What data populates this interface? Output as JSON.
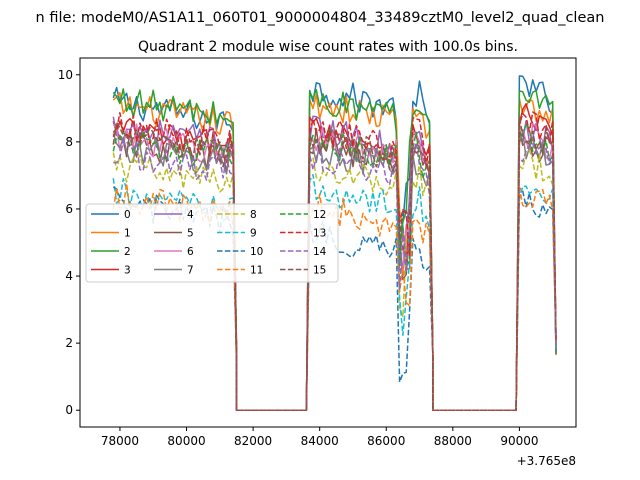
{
  "chart_data": {
    "type": "line",
    "suptitle": "n file: modeM0/AS1A11_060T01_9000004804_33489cztM0_level2_quad_clean",
    "title": "Quadrant 2 module wise count rates with 100.0s bins.",
    "xlabel": "",
    "ylabel": "",
    "x_offset_label": "+3.765e8",
    "xlim": [
      76800,
      91700
    ],
    "ylim": [
      -0.5,
      10.5
    ],
    "x_ticks": [
      78000,
      80000,
      82000,
      84000,
      86000,
      88000,
      90000
    ],
    "x_tick_labels": [
      "78000",
      "80000",
      "82000",
      "84000",
      "86000",
      "88000",
      "90000"
    ],
    "y_ticks": [
      0,
      2,
      4,
      6,
      8,
      10
    ],
    "y_tick_labels": [
      "0",
      "2",
      "4",
      "6",
      "8",
      "10"
    ],
    "legend_position": "center-left",
    "segments": [
      {
        "start": 77800,
        "end": 81400,
        "type": "on"
      },
      {
        "start": 81400,
        "end": 83700,
        "type": "off"
      },
      {
        "start": 83700,
        "end": 87300,
        "type": "on"
      },
      {
        "start": 87300,
        "end": 90000,
        "type": "off"
      },
      {
        "start": 90000,
        "end": 91100,
        "type": "on"
      }
    ],
    "series": [
      {
        "name": "0",
        "color": "#1f77b4",
        "dash": "solid",
        "level": 8.9,
        "level2": 9.2,
        "level3": 9.4
      },
      {
        "name": "1",
        "color": "#ff7f0e",
        "dash": "solid",
        "level": 8.8,
        "level2": 8.8,
        "level3": 8.9
      },
      {
        "name": "2",
        "color": "#2ca02c",
        "dash": "solid",
        "level": 9.0,
        "level2": 8.9,
        "level3": 9.3
      },
      {
        "name": "3",
        "color": "#d62728",
        "dash": "solid",
        "level": 8.1,
        "level2": 8.0,
        "level3": 8.5
      },
      {
        "name": "4",
        "color": "#9467bd",
        "dash": "solid",
        "level": 8.2,
        "level2": 8.0,
        "level3": 8.2
      },
      {
        "name": "5",
        "color": "#8c564b",
        "dash": "solid",
        "level": 7.7,
        "level2": 7.6,
        "level3": 7.8
      },
      {
        "name": "6",
        "color": "#e377c2",
        "dash": "solid",
        "level": 7.9,
        "level2": 7.8,
        "level3": 8.0
      },
      {
        "name": "7",
        "color": "#7f7f7f",
        "dash": "solid",
        "level": 7.6,
        "level2": 7.4,
        "level3": 7.7
      },
      {
        "name": "8",
        "color": "#bcbd22",
        "dash": "dashed",
        "level": 7.0,
        "level2": 6.9,
        "level3": 7.2
      },
      {
        "name": "9",
        "color": "#17becf",
        "dash": "dashed",
        "level": 6.2,
        "level2": 6.2,
        "level3": 6.4
      },
      {
        "name": "10",
        "color": "#1f77b4",
        "dash": "dashed",
        "level": 5.9,
        "level2": 4.9,
        "level3": 6.0
      },
      {
        "name": "11",
        "color": "#ff7f0e",
        "dash": "dashed",
        "level": 6.1,
        "level2": 5.7,
        "level3": 6.2
      },
      {
        "name": "12",
        "color": "#2ca02c",
        "dash": "dashed",
        "level": 7.8,
        "level2": 7.7,
        "level3": 8.0
      },
      {
        "name": "13",
        "color": "#d62728",
        "dash": "dashed",
        "level": 8.2,
        "level2": 8.0,
        "level3": 8.4
      },
      {
        "name": "14",
        "color": "#9467bd",
        "dash": "dashed",
        "level": 7.4,
        "level2": 7.2,
        "level3": 7.6
      },
      {
        "name": "15",
        "color": "#8c564b",
        "dash": "dashed",
        "level": 7.9,
        "level2": 7.7,
        "level3": 8.1
      }
    ]
  }
}
